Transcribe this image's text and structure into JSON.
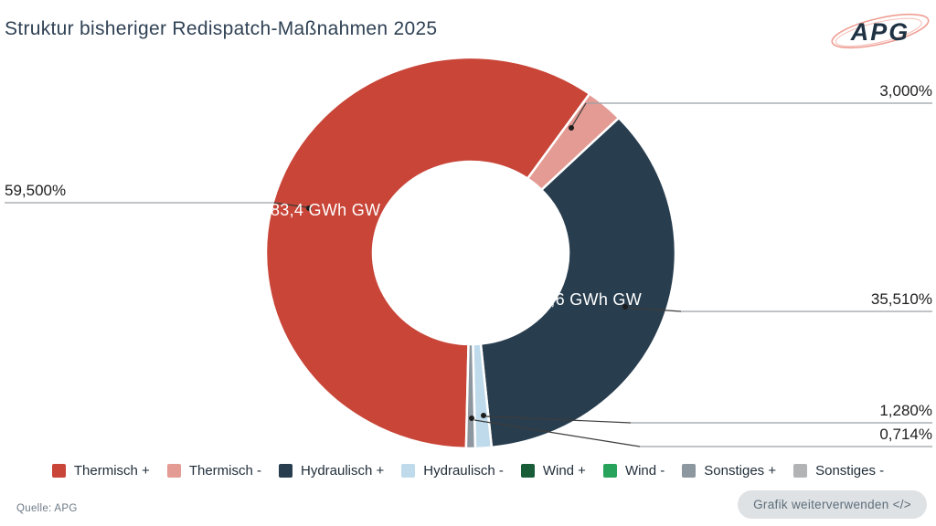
{
  "title": "Struktur bisheriger Redispatch-Maßnahmen 2025",
  "logo_text": "APG",
  "source": "Quelle: APG",
  "embed_button_label": "Grafik weiterverwenden </>",
  "chart_data": {
    "type": "pie",
    "subtype": "donut",
    "title": "Struktur bisheriger Redispatch-Maßnahmen 2025",
    "unit": "GWh",
    "start_angle_deg": 181.3,
    "direction": "clockwise",
    "legend_position": "bottom",
    "series": [
      {
        "name": "Thermisch +",
        "percent": 59.5,
        "percent_label": "59,500%",
        "color": "#c84538",
        "slice_label": "83,4 GWh GW"
      },
      {
        "name": "Thermisch -",
        "percent": 3.0,
        "percent_label": "3,000%",
        "color": "#e39b93"
      },
      {
        "name": "Hydraulisch +",
        "percent": 35.51,
        "percent_label": "35,510%",
        "color": "#283d4e",
        "slice_label": "9,6 GWh GW"
      },
      {
        "name": "Hydraulisch -",
        "percent": 1.28,
        "percent_label": "1,280%",
        "color": "#bfdbeb"
      },
      {
        "name": "Wind +",
        "percent": 0,
        "percent_label": "",
        "color": "#185c38"
      },
      {
        "name": "Wind -",
        "percent": 0,
        "percent_label": "",
        "color": "#27a35b"
      },
      {
        "name": "Sonstiges +",
        "percent": 0.714,
        "percent_label": "0,714%",
        "color": "#8d97a0"
      },
      {
        "name": "Sonstiges -",
        "percent": 0,
        "percent_label": "",
        "color": "#b2b3b5"
      }
    ]
  }
}
